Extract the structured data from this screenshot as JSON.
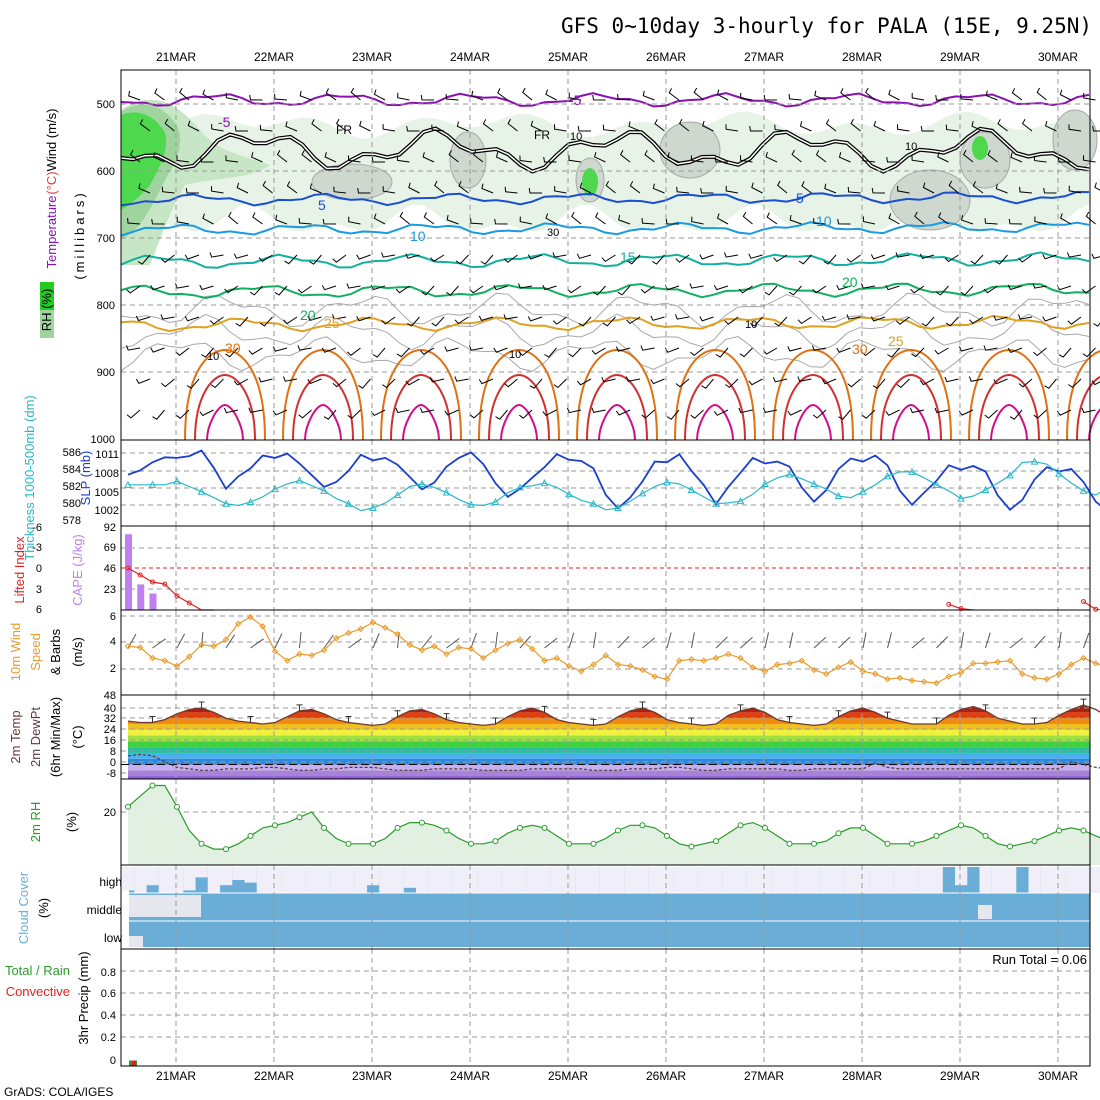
{
  "title": "GFS 0~10day 3-hourly for PALA (15E, 9.25N)",
  "footer": "GrADS: COLA/IGES",
  "colors": {
    "rh_shade": [
      "#e6f3e6",
      "#c6e6c6",
      "#9fd49f",
      "#4dd84d",
      "#22cc22"
    ],
    "contour_rh": "#a8a8a8",
    "freezing_line": "#000000",
    "temp_isotherms": {
      "-5": "#8a10b0",
      "5": "#1a4ed0",
      "10": "#1a9ae0",
      "15": "#10b0a0",
      "20": "#10b060",
      "25": "#e0a020",
      "30": "#e07010",
      "35": "#d03030",
      "40": "#d0108a"
    },
    "slp": "#1a3ed0",
    "thickness": "#28b8c8",
    "cape": "#c080f0",
    "lifted_index": "#e02020",
    "wind_speed": "#e89a28",
    "temp_max": "#6a3a30",
    "dewpoint": "#5a3a3a",
    "rh2m": "#2a9a2a",
    "cloud": "#6aaed8",
    "cloud_clear": "#f0eef8",
    "precip_total": "#2a9a2a",
    "precip_conv": "#e02020"
  },
  "axes": {
    "top_dates": [
      "21MAR",
      "22MAR",
      "23MAR",
      "24MAR",
      "25MAR",
      "26MAR",
      "27MAR",
      "28MAR",
      "29MAR",
      "30MAR"
    ],
    "bottom_dates": [
      "21MAR",
      "22MAR",
      "23MAR",
      "24MAR",
      "25MAR",
      "26MAR",
      "27MAR",
      "28MAR",
      "29MAR",
      "30MAR"
    ]
  },
  "panels": {
    "upper": {
      "ylabel_parts": [
        {
          "text": "Wind (m/s)",
          "color": "#000000"
        },
        {
          "text": "(°C)",
          "color": "#e04040"
        },
        {
          "text": "Temperature",
          "color": "#8a10b0"
        }
      ],
      "ylabel_sub": "(millibars)",
      "rh_label": "RH (%)",
      "yticks": [
        "500",
        "600",
        "700",
        "800",
        "900",
        "1000"
      ],
      "isotherm_labels": [
        {
          "text": "-5",
          "color": "#8a10b0"
        },
        {
          "text": "-5",
          "color": "#8a10b0"
        },
        {
          "text": "FR",
          "color": "#000000"
        },
        {
          "text": "FR",
          "color": "#000000"
        },
        {
          "text": "5",
          "color": "#1a4ed0"
        },
        {
          "text": "5",
          "color": "#1a4ed0"
        },
        {
          "text": "10",
          "color": "#1a9ae0"
        },
        {
          "text": "10",
          "color": "#1a9ae0"
        },
        {
          "text": "15",
          "color": "#10b0a0"
        },
        {
          "text": "20",
          "color": "#10b060"
        },
        {
          "text": "20",
          "color": "#10b060"
        },
        {
          "text": "25",
          "color": "#e0a020"
        },
        {
          "text": "25",
          "color": "#e0a020"
        },
        {
          "text": "30",
          "color": "#e07010"
        },
        {
          "text": "30",
          "color": "#e07010"
        },
        {
          "text": "10",
          "color": "#a8a8a8"
        },
        {
          "text": "10",
          "color": "#a8a8a8"
        },
        {
          "text": "30",
          "color": "#a8a8a8"
        },
        {
          "text": "10",
          "color": "#a8a8a8"
        },
        {
          "text": "10",
          "color": "#a8a8a8"
        },
        {
          "text": "10",
          "color": "#a8a8a8"
        }
      ]
    },
    "slp": {
      "left_label": "Thickness 1000-500mb (dm)",
      "right_label": "SLP (mb)",
      "yticks_left": [
        "586",
        "584",
        "582",
        "580",
        "578"
      ],
      "yticks_right": [
        "1011",
        "1008",
        "1005",
        "1002"
      ]
    },
    "cape": {
      "left_label": "Lifted Index",
      "right_label": "CAPE (J/kg)",
      "yticks_left": [
        "-6",
        "-3",
        "0",
        "3",
        "6"
      ],
      "yticks_right": [
        "92",
        "69",
        "46",
        "23"
      ]
    },
    "wind": {
      "label_parts": [
        "10m Wind",
        "Speed",
        "& Barbs",
        "(m/s)"
      ],
      "yticks": [
        "6",
        "4",
        "2"
      ]
    },
    "temp": {
      "label_parts": [
        "2m Temp",
        "2m DewPt",
        "(6hr Min/Max)",
        "(°C)"
      ],
      "yticks": [
        "48",
        "40",
        "32",
        "24",
        "16",
        "8",
        "0",
        "-8"
      ]
    },
    "rh": {
      "label_parts": [
        "2m RH",
        "(%)"
      ],
      "yticks": [
        "20"
      ]
    },
    "cloud": {
      "label_parts": [
        "Cloud Cover",
        "(%)"
      ],
      "levels": [
        "high",
        "middle",
        "low"
      ]
    },
    "precip": {
      "label_parts": [
        "Total / Rain",
        "Convective",
        "3hr Precip (mm)"
      ],
      "yticks": [
        "0.8",
        "0.6",
        "0.4",
        "0.2",
        "0"
      ],
      "run_total": "Run Total = 0.06"
    }
  },
  "chart_data": {
    "type": "meteogram",
    "title": "GFS 0~10day 3-hourly for PALA (15E, 9.25N)",
    "time_step_hours": 3,
    "x": [
      "21MAR",
      "22MAR",
      "23MAR",
      "24MAR",
      "25MAR",
      "26MAR",
      "27MAR",
      "28MAR",
      "29MAR",
      "30MAR"
    ],
    "slp_mb": [
      1007.5,
      1008.2,
      1009.5,
      1010.3,
      1010.2,
      1010.5,
      1011.4,
      1008.6,
      1005.2,
      1007.2,
      1008.5,
      1010.6,
      1010.2,
      1010.9,
      1009.3,
      1007.4,
      1005.5,
      1006.3,
      1008.1,
      1010.7,
      1009.8,
      1010.2,
      1009.1,
      1007.1,
      1005.1,
      1006.2,
      1008.8,
      1010.2,
      1011.1,
      1009.2,
      1006.1,
      1003.9,
      1005.2,
      1007.0,
      1008.7,
      1010.8,
      1009.9,
      1009.7,
      1008.5,
      1004.2,
      1002.0,
      1003.8,
      1006.4,
      1009.6,
      1009.5,
      1010.8,
      1008.1,
      1005.8,
      1002.7,
      1005.5,
      1007.8,
      1010.2,
      1009.3,
      1009.6,
      1008.8,
      1005.4,
      1003.1,
      1005.0,
      1008.4,
      1010.1,
      1009.6,
      1010.6,
      1009.0,
      1004.9,
      1002.6,
      1004.6,
      1006.5,
      1009.0,
      1008.3,
      1008.9,
      1008.0,
      1004.1,
      1001.8,
      1003.4,
      1006.7,
      1008.7,
      1008.0,
      1008.4,
      1006.3,
      1003.1,
      1001.5,
      1004.7,
      1005.8,
      1008.1
    ],
    "thickness_dm": [
      582.3,
      582.3,
      582.3,
      582.3,
      582.7,
      582.1,
      581.5,
      580.8,
      580.1,
      579.9,
      580.3,
      580.9,
      581.8,
      582.4,
      582.8,
      582.2,
      581.6,
      580.7,
      580.1,
      579.3,
      579.6,
      580.2,
      581.1,
      582.1,
      582.4,
      582.0,
      581.4,
      580.6,
      580.0,
      579.9,
      580.3,
      581.4,
      582.0,
      582.2,
      582.5,
      582.0,
      581.2,
      580.5,
      580.1,
      579.4,
      579.6,
      580.4,
      581.3,
      582.1,
      582.6,
      582.4,
      581.7,
      580.9,
      580.1,
      580.2,
      580.4,
      581.2,
      582.4,
      583.1,
      583.5,
      583.0,
      582.4,
      581.8,
      581.0,
      580.8,
      581.5,
      582.3,
      583.3,
      583.8,
      583.8,
      583.1,
      582.3,
      581.6,
      580.7,
      581.0,
      581.7,
      582.5,
      583.4,
      584.9,
      585.0,
      584.7,
      583.6,
      582.5,
      581.6,
      581.1,
      582.0,
      583.1,
      584.5,
      585.5
    ],
    "cape_jkg": [
      83,
      28,
      18,
      0,
      0,
      0,
      0,
      0,
      0,
      0,
      0,
      0,
      0,
      0,
      0,
      0,
      0,
      0,
      0,
      0,
      0,
      0,
      0,
      0,
      0,
      0,
      0,
      0,
      0,
      0,
      0,
      0,
      0,
      0,
      0,
      0,
      0,
      0,
      0,
      0,
      0,
      0,
      0,
      0,
      0,
      0,
      0,
      0,
      0,
      0,
      0,
      0,
      0,
      0,
      0,
      0,
      0,
      0,
      0,
      0,
      0,
      0,
      0,
      0,
      0,
      0,
      0,
      0,
      0,
      0,
      0,
      0,
      0,
      0,
      0,
      0,
      0,
      0,
      0,
      0,
      0,
      0,
      0,
      0
    ],
    "lifted_index": [
      0,
      1,
      2,
      2.3,
      4,
      5,
      6,
      7,
      8,
      9,
      10,
      10,
      10,
      10,
      10,
      10,
      10,
      10,
      10,
      10,
      10,
      10,
      10,
      10,
      10,
      10,
      10,
      10,
      10,
      10,
      10,
      10,
      10,
      10,
      10,
      10,
      10,
      10,
      10,
      10,
      10,
      10,
      10,
      10,
      10,
      10,
      10,
      10,
      10,
      10,
      10,
      10,
      10,
      10,
      10,
      10,
      10,
      10,
      10,
      10,
      10,
      10,
      10,
      10,
      10,
      10,
      10,
      5.2,
      5.8,
      10,
      10,
      10,
      10,
      10,
      10,
      10,
      10,
      10,
      4.8,
      5.9,
      10,
      10,
      10,
      10
    ],
    "wind10m_ms": [
      3.7,
      3.6,
      2.8,
      2.6,
      2.2,
      2.9,
      3.8,
      3.7,
      4.2,
      5.4,
      5.9,
      5.2,
      3.3,
      2.6,
      3.1,
      3.0,
      3.4,
      4.3,
      4.7,
      5.0,
      5.5,
      5.1,
      4.6,
      3.8,
      3.4,
      3.7,
      3.1,
      3.6,
      3.5,
      2.8,
      3.4,
      3.9,
      4.2,
      3.5,
      2.6,
      2.8,
      2.2,
      1.8,
      2.3,
      3.0,
      2.3,
      2.2,
      1.9,
      1.4,
      1.2,
      2.6,
      2.7,
      2.6,
      2.8,
      3.1,
      2.8,
      2.1,
      1.8,
      2.3,
      2.4,
      2.6,
      1.9,
      1.6,
      2.1,
      2.5,
      1.8,
      1.6,
      1.2,
      1.3,
      1.1,
      1.0,
      0.9,
      1.4,
      1.7,
      2.4,
      2.4,
      2.5,
      2.6,
      1.6,
      1.3,
      1.2,
      1.6,
      2.3,
      2.8,
      2.4,
      2.1,
      1.2,
      1.6,
      0.5
    ],
    "temp2m_c": [
      30,
      29,
      29,
      31,
      35,
      38,
      39,
      36,
      32,
      30,
      29,
      28,
      29,
      33,
      37,
      38,
      35,
      31,
      29,
      28,
      27,
      28,
      33,
      37,
      38,
      35,
      31,
      29,
      28,
      27,
      28,
      33,
      37,
      39,
      36,
      31,
      29,
      28,
      27,
      28,
      33,
      37,
      39,
      36,
      31,
      29,
      28,
      27,
      28,
      34,
      37,
      39,
      36,
      31,
      29,
      28,
      27,
      28,
      33,
      37,
      39,
      36,
      32,
      30,
      28,
      28,
      28,
      34,
      38,
      40,
      37,
      32,
      30,
      28,
      28,
      29,
      34,
      38,
      41,
      38,
      33,
      31,
      29,
      29
    ],
    "dewpt2m_c": [
      6,
      7,
      6,
      2,
      -2,
      -3,
      -4,
      -4,
      -3,
      -3,
      -3,
      -2,
      -2,
      -3,
      -4,
      -4,
      -3,
      -3,
      -2,
      -2,
      -2,
      -3,
      -4,
      -4,
      -4,
      -3,
      -3,
      -3,
      -3,
      -4,
      -4,
      -4,
      -4,
      -3,
      -3,
      -3,
      -3,
      -3,
      -4,
      -4,
      -4,
      -3,
      -3,
      -3,
      -2,
      -2,
      -3,
      -4,
      -4,
      -3,
      -3,
      -3,
      -3,
      -3,
      -4,
      -4,
      -3,
      -3,
      -3,
      -3,
      -3,
      1,
      -2,
      -3,
      -3,
      -3,
      -3,
      -3,
      -3,
      -3,
      -3,
      -3,
      -3,
      -3,
      -3,
      -3,
      -3,
      2,
      0,
      -2,
      -3,
      -3,
      -3,
      -3
    ],
    "rh2m_pct": [
      22,
      26,
      30,
      30,
      22,
      13,
      8,
      6,
      6,
      8,
      11,
      14,
      15,
      16,
      18,
      20,
      14,
      10,
      8,
      8,
      8,
      10,
      14,
      16,
      16,
      15,
      13,
      10,
      8,
      8,
      9,
      12,
      14,
      15,
      14,
      11,
      8,
      8,
      8,
      10,
      13,
      15,
      15,
      14,
      11,
      8,
      7,
      8,
      9,
      12,
      15,
      16,
      14,
      11,
      8,
      8,
      8,
      9,
      12,
      14,
      14,
      11,
      8,
      8,
      8,
      9,
      11,
      13,
      15,
      14,
      11,
      8,
      7,
      8,
      9,
      11,
      13,
      14,
      13,
      11,
      9,
      10,
      11,
      12
    ],
    "cloud_high_gap": [
      0.1,
      0.0,
      0.3,
      0.0,
      0.0,
      0.1,
      0.6,
      0.0,
      0.3,
      0.5,
      0.4,
      0.0,
      0.0,
      0.0,
      0.0,
      0.0,
      0.0,
      0.0,
      0.0,
      0.0,
      0.3,
      0.0,
      0.0,
      0.2,
      0.0,
      0.0,
      0.0,
      0.0,
      0.0,
      0.0,
      0.0,
      0.0,
      0.0,
      0.0,
      0.0,
      0.0,
      0.0,
      0.0,
      0.0,
      0.0,
      0.0,
      0.0,
      0.0,
      0.0,
      0.0,
      0.0,
      0.0,
      0.0,
      0.0,
      0.0,
      0.0,
      0.0,
      0.0,
      0.0,
      0.0,
      0.0,
      0.0,
      0.0,
      0.0,
      0.0,
      0.0,
      0.0,
      0.0,
      0.0,
      0.0,
      0.0,
      0.0,
      1.0,
      0.3,
      1.0,
      0.0,
      0.0,
      0.0,
      1.0,
      0.0,
      0.0,
      0.0,
      0.0,
      0.0,
      0.0,
      1.0,
      0.0,
      0.0,
      0.0
    ],
    "precip_total_mm": [
      0.05,
      0,
      0,
      0,
      0,
      0,
      0,
      0,
      0,
      0,
      0,
      0,
      0,
      0,
      0,
      0,
      0,
      0,
      0,
      0,
      0,
      0,
      0,
      0,
      0,
      0,
      0,
      0,
      0,
      0,
      0,
      0,
      0,
      0,
      0,
      0,
      0,
      0,
      0,
      0,
      0,
      0,
      0,
      0,
      0,
      0,
      0,
      0,
      0,
      0,
      0,
      0,
      0,
      0,
      0,
      0,
      0,
      0,
      0,
      0,
      0,
      0,
      0,
      0,
      0,
      0,
      0,
      0,
      0,
      0,
      0,
      0,
      0,
      0,
      0,
      0,
      0,
      0,
      0,
      0,
      0,
      0,
      0,
      0
    ],
    "precip_conv_mm": [
      0.05,
      0,
      0,
      0,
      0,
      0,
      0,
      0,
      0,
      0,
      0,
      0,
      0,
      0,
      0,
      0,
      0,
      0,
      0,
      0,
      0,
      0,
      0,
      0,
      0,
      0,
      0,
      0,
      0,
      0,
      0,
      0,
      0,
      0,
      0,
      0,
      0,
      0,
      0,
      0,
      0,
      0,
      0,
      0,
      0,
      0,
      0,
      0,
      0,
      0,
      0,
      0,
      0,
      0,
      0,
      0,
      0,
      0,
      0,
      0,
      0,
      0,
      0,
      0,
      0,
      0,
      0,
      0,
      0,
      0,
      0,
      0,
      0,
      0,
      0,
      0,
      0,
      0,
      0,
      0,
      0,
      0,
      0,
      0
    ]
  }
}
